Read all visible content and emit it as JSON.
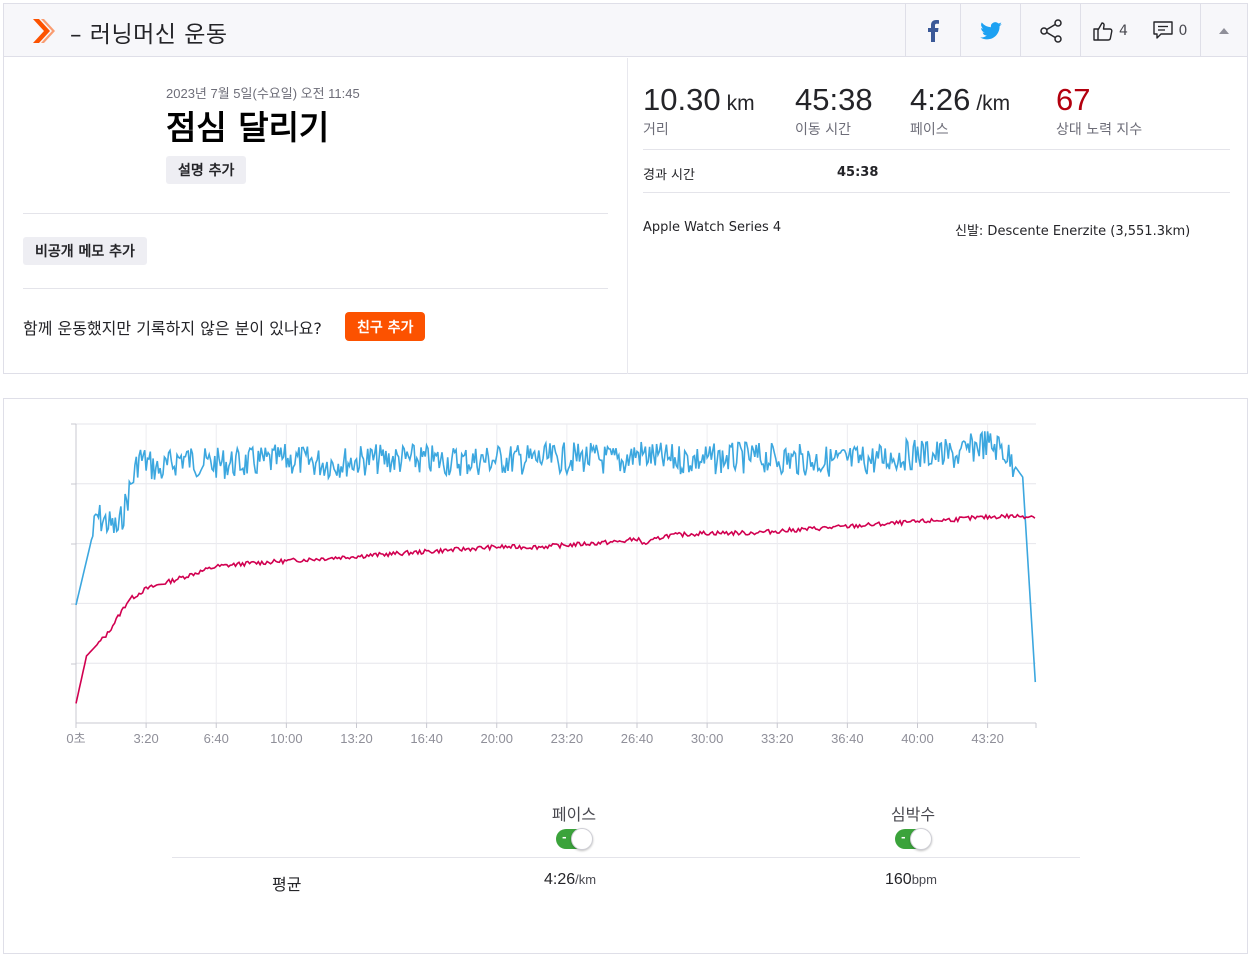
{
  "header": {
    "title": "– 러닝머신 운동",
    "kudos_count": "4",
    "comment_count": "0",
    "icons": [
      "strava-logo-icon",
      "facebook-icon",
      "twitter-icon",
      "share-icon",
      "thumbs-up-icon",
      "comment-icon",
      "collapse-icon"
    ],
    "brand_color": "#fc5200"
  },
  "activity": {
    "date": "2023년 7월 5일(수요일) 오전 11:45",
    "name": "점심 달리기",
    "add_description": "설명 추가",
    "add_private_note": "비공개 메모 추가",
    "friends_question": "함께 운동했지만 기록하지 않은 분이 있나요?",
    "add_friend": "친구 추가"
  },
  "stats": {
    "distance": {
      "value": "10.30",
      "unit": "km",
      "label": "거리"
    },
    "moving_time": {
      "value": "45:38",
      "label": "이동 시간"
    },
    "pace": {
      "value": "4:26",
      "unit": "/km",
      "label": "페이스"
    },
    "relative_effort": {
      "value": "67",
      "label": "상대 노력 지수",
      "color": "#b3000e"
    },
    "elapsed_label": "경과 시간",
    "elapsed_value": "45:38",
    "device": "Apple Watch Series 4",
    "shoes": "신발: Descente Enerzite (3,551.3km)"
  },
  "chart_data": {
    "type": "line",
    "x_ticks": [
      "0초",
      "3:20",
      "6:40",
      "10:00",
      "13:20",
      "16:40",
      "20:00",
      "23:20",
      "26:40",
      "30:00",
      "33:20",
      "36:40",
      "40:00",
      "43:20"
    ],
    "x_unit": "seconds",
    "xlim": [
      0,
      2738
    ],
    "grid": true,
    "series": [
      {
        "name": "페이스",
        "color": "#3ca7df",
        "x": [
          0,
          60,
          120,
          180,
          240,
          300,
          360,
          480,
          600,
          720,
          840,
          960,
          1080,
          1200,
          1320,
          1440,
          1560,
          1600,
          1680,
          1800,
          1920,
          2040,
          2160,
          2280,
          2400,
          2520,
          2580,
          2640,
          2700,
          2738
        ],
        "pace_sec_per_km": [
          330,
          285,
          292,
          255,
          262,
          255,
          258,
          258,
          256,
          258,
          256,
          256,
          257,
          256,
          256,
          255,
          257,
          253,
          256,
          256,
          255,
          256,
          257,
          256,
          253,
          254,
          248,
          250,
          265,
          375
        ]
      },
      {
        "name": "심박수",
        "color": "#d10050",
        "x": [
          0,
          30,
          90,
          150,
          200,
          300,
          400,
          480,
          600,
          720,
          840,
          960,
          1080,
          1200,
          1320,
          1440,
          1560,
          1600,
          1620,
          1680,
          1800,
          1920,
          2040,
          2160,
          2280,
          2400,
          2520,
          2640,
          2738
        ],
        "bpm": [
          105,
          122,
          130,
          142,
          146,
          150,
          154,
          155,
          156,
          157,
          158,
          159,
          160,
          161,
          161,
          162,
          163,
          164,
          162,
          165,
          166,
          166,
          167,
          168,
          169,
          170,
          171,
          172,
          172
        ]
      }
    ]
  },
  "legend": {
    "pace_label": "페이스",
    "hr_label": "심박수",
    "avg_label": "평균",
    "avg_pace": "4:26",
    "avg_pace_unit": "/km",
    "avg_hr": "160",
    "avg_hr_unit": "bpm"
  }
}
